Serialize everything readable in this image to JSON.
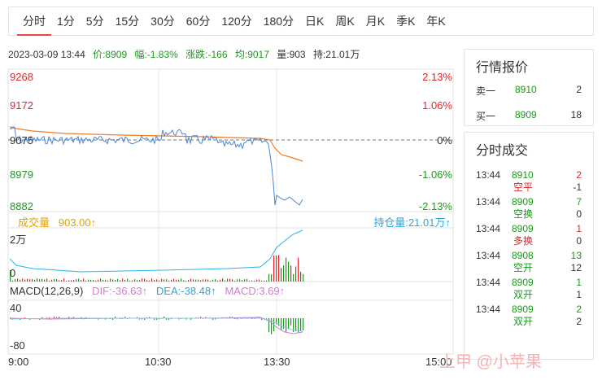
{
  "tabs": [
    "分时",
    "1分",
    "5分",
    "15分",
    "30分",
    "60分",
    "120分",
    "180分",
    "日K",
    "周K",
    "月K",
    "季K",
    "年K"
  ],
  "info": {
    "datetime": "2023-03-09 13:44",
    "price": "价:8909",
    "amplitude": "幅:-1.83%",
    "change": "涨跌:-166",
    "avg": "均:9017",
    "volume": "量:903",
    "hold": "持:21.01万"
  },
  "price_axis": [
    "9268",
    "9172",
    "9075",
    "8979",
    "8882"
  ],
  "pct_axis": [
    "2.13%",
    "1.06%",
    "0%",
    "-1.06%",
    "-2.13%"
  ],
  "volume_label": "成交量",
  "volume_value": "903.00",
  "hold_label": "持仓量:21.01万",
  "vol_axis_top": "2万",
  "vol_axis_bottom": "0",
  "macd_label": "MACD(12,26,9)",
  "dif_label": "DIF:-36.63",
  "dea_label": "DEA:-38.48",
  "macd_value": "MACD:3.69",
  "macd_axis_top": "40",
  "macd_axis_bottom": "-80",
  "time_axis": [
    "9:00",
    "10:30",
    "13:30",
    "15:00"
  ],
  "quote": {
    "title": "行情报价",
    "sell_label": "卖一",
    "sell_price": "8910",
    "sell_vol": "2",
    "buy_label": "买一",
    "buy_price": "8909",
    "buy_vol": "18"
  },
  "trades_title": "分时成交",
  "trades": [
    {
      "time": "13:44",
      "price": "8910",
      "vol": "2",
      "vol_color": "r",
      "type": "空平",
      "type_color": "r",
      "delta": "-1"
    },
    {
      "time": "13:44",
      "price": "8909",
      "vol": "7",
      "vol_color": "g",
      "type": "空换",
      "type_color": "g",
      "delta": "0"
    },
    {
      "time": "13:44",
      "price": "8909",
      "vol": "1",
      "vol_color": "r",
      "type": "多换",
      "type_color": "r",
      "delta": "0"
    },
    {
      "time": "13:44",
      "price": "8908",
      "vol": "13",
      "vol_color": "g",
      "type": "空开",
      "type_color": "g",
      "delta": "12"
    },
    {
      "time": "13:44",
      "price": "8909",
      "vol": "1",
      "vol_color": "g",
      "type": "双开",
      "type_color": "g",
      "delta": "1"
    },
    {
      "time": "13:44",
      "price": "8909",
      "vol": "2",
      "vol_color": "g",
      "type": "双开",
      "type_color": "g",
      "delta": "2"
    }
  ],
  "watermark": "上甲 @小苹果",
  "colors": {
    "red": "#e0262b",
    "green": "#1a9a1a",
    "blue": "#4a86d8",
    "orange": "#ef7d22",
    "cyan": "#23a8e0",
    "pink": "#d67ad6"
  }
}
